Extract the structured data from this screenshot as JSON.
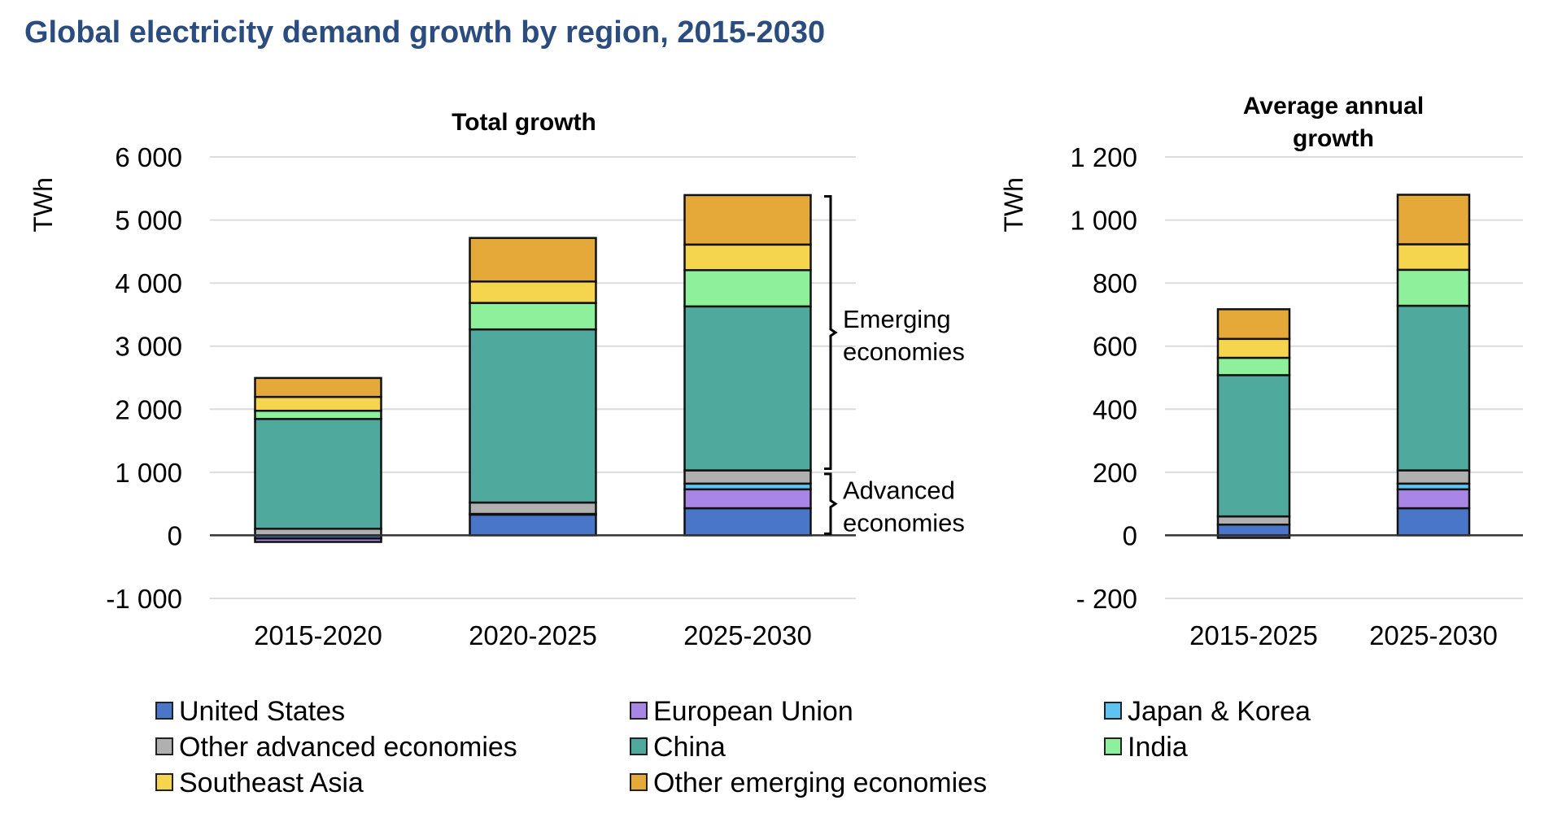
{
  "title": "Global electricity demand growth by region, 2015-2030",
  "colors": {
    "United States": "#4a76c9",
    "European Union": "#a886e6",
    "Japan & Korea": "#5ec3f0",
    "Other advanced economies": "#b0b0b0",
    "China": "#4fa99d",
    "India": "#8ef09a",
    "Southeast Asia": "#f5d44e",
    "Other emerging economies": "#e5a93a"
  },
  "legend": [
    "United States",
    "European Union",
    "Japan & Korea",
    "Other advanced economies",
    "China",
    "India",
    "Southeast Asia",
    "Other emerging economies"
  ],
  "chart_data": [
    {
      "type": "bar",
      "stacked": true,
      "title": "Total  growth",
      "ylabel": "TWh",
      "ylim": [
        -1000,
        6000
      ],
      "yticks": [
        6000,
        5000,
        4000,
        3000,
        2000,
        1000,
        0,
        -1000
      ],
      "ytick_labels": [
        "6 000",
        "5 000",
        "4 000",
        "3 000",
        "2 000",
        "1 000",
        "0",
        "-1 000"
      ],
      "grid": true,
      "categories": [
        "2015-2020",
        "2020-2025",
        "2025-2030"
      ],
      "series": [
        {
          "name": "United States",
          "values": [
            -50,
            330,
            430
          ]
        },
        {
          "name": "European Union",
          "values": [
            -55,
            0,
            300
          ]
        },
        {
          "name": "Japan & Korea",
          "values": [
            0,
            10,
            90
          ]
        },
        {
          "name": "Other advanced economies",
          "values": [
            105,
            180,
            210
          ]
        },
        {
          "name": "China",
          "values": [
            1740,
            2745,
            2600
          ]
        },
        {
          "name": "India",
          "values": [
            130,
            420,
            575
          ]
        },
        {
          "name": "Southeast Asia",
          "values": [
            220,
            340,
            405
          ]
        },
        {
          "name": "Other emerging economies",
          "values": [
            300,
            690,
            785
          ]
        }
      ],
      "annotations": [
        {
          "text": [
            "Emerging",
            "economies"
          ],
          "range": [
            1030,
            5400
          ]
        },
        {
          "text": [
            "Advanced",
            "economies"
          ],
          "range": [
            0,
            1000
          ]
        }
      ]
    },
    {
      "type": "bar",
      "stacked": true,
      "title": [
        "Average annual",
        "growth"
      ],
      "ylabel": "TWh",
      "ylim": [
        -200,
        1200
      ],
      "yticks": [
        1200,
        1000,
        800,
        600,
        400,
        200,
        0,
        -200
      ],
      "ytick_labels": [
        "1 200",
        "1 000",
        "800",
        "600",
        "400",
        "200",
        "0",
        "- 200"
      ],
      "grid": true,
      "categories": [
        "2015-2025",
        "2025-2030"
      ],
      "series": [
        {
          "name": "United States",
          "values": [
            34,
            86
          ]
        },
        {
          "name": "European Union",
          "values": [
            -8,
            60
          ]
        },
        {
          "name": "Japan & Korea",
          "values": [
            0,
            18
          ]
        },
        {
          "name": "Other advanced economies",
          "values": [
            26,
            42
          ]
        },
        {
          "name": "China",
          "values": [
            448,
            522
          ]
        },
        {
          "name": "India",
          "values": [
            55,
            114
          ]
        },
        {
          "name": "Southeast Asia",
          "values": [
            60,
            81
          ]
        },
        {
          "name": "Other emerging economies",
          "values": [
            94,
            157
          ]
        }
      ]
    }
  ]
}
